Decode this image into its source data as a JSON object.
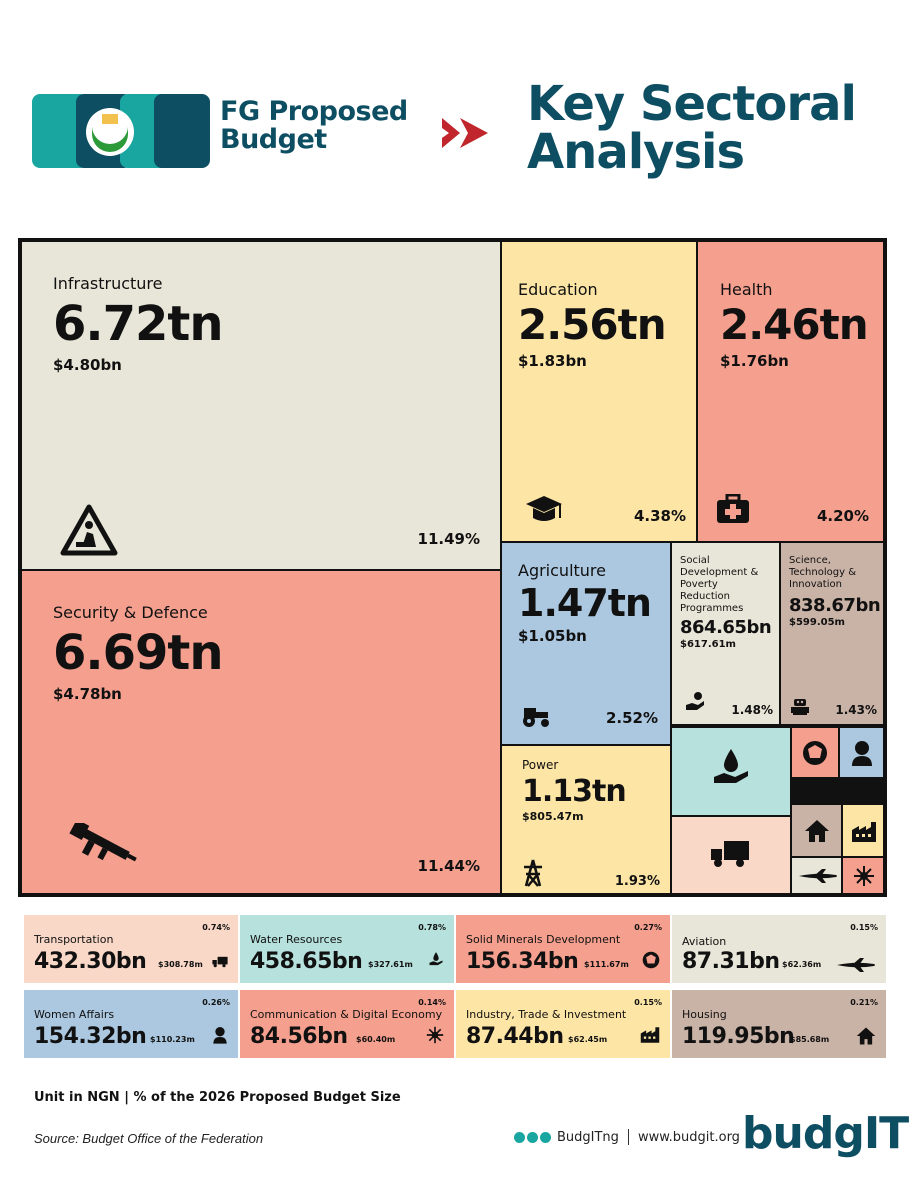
{
  "header": {
    "year": "2026",
    "subtitle_line1": "FG Proposed",
    "subtitle_line2": "Budget",
    "title_line1": "Key Sectoral",
    "title_line2": "Analysis"
  },
  "chart_data": {
    "type": "treemap",
    "unit": "NGN",
    "sectors": [
      {
        "id": "infrastructure",
        "name": "Infrastructure",
        "value": "6.72tn",
        "usd": "$4.80bn",
        "pct": "11.49%",
        "icon": "construction-worker-icon",
        "color": "#e8e6d8"
      },
      {
        "id": "security",
        "name": "Security & Defence",
        "value": "6.69tn",
        "usd": "$4.78bn",
        "pct": "11.44%",
        "icon": "rifle-icon",
        "color": "#f59f8e"
      },
      {
        "id": "education",
        "name": "Education",
        "value": "2.56tn",
        "usd": "$1.83bn",
        "pct": "4.38%",
        "icon": "graduation-cap-icon",
        "color": "#fce5a5"
      },
      {
        "id": "health",
        "name": "Health",
        "value": "2.46tn",
        "usd": "$1.76bn",
        "pct": "4.20%",
        "icon": "first-aid-kit-icon",
        "color": "#f59f8e"
      },
      {
        "id": "agriculture",
        "name": "Agriculture",
        "value": "1.47tn",
        "usd": "$1.05bn",
        "pct": "2.52%",
        "icon": "tractor-icon",
        "color": "#abc8e0"
      },
      {
        "id": "social",
        "name": "Social Development & Poverty Reduction Programmes",
        "value": "864.65bn",
        "usd": "$617.61m",
        "pct": "1.48%",
        "icon": "charity-hand-icon",
        "color": "#e8e6d8"
      },
      {
        "id": "science",
        "name": "Science, Technology & Innovation",
        "value": "838.67bn",
        "usd": "$599.05m",
        "pct": "1.43%",
        "icon": "robot-icon",
        "color": "#c9b2a6"
      },
      {
        "id": "power",
        "name": "Power",
        "value": "1.13tn",
        "usd": "$805.47m",
        "pct": "1.93%",
        "icon": "power-tower-icon",
        "color": "#fce5a5"
      }
    ],
    "cards": [
      {
        "id": "transportation",
        "name": "Transportation",
        "value": "432.30bn",
        "usd": "$308.78m",
        "pct": "0.74%",
        "icon": "truck-icon",
        "color": "#fad8c8"
      },
      {
        "id": "water",
        "name": "Water Resources",
        "value": "458.65bn",
        "usd": "$327.61m",
        "pct": "0.78%",
        "icon": "water-drop-hand-icon",
        "color": "#b6e1dc"
      },
      {
        "id": "solid",
        "name": "Solid Minerals Development",
        "value": "156.34bn",
        "usd": "$111.67m",
        "pct": "0.27%",
        "icon": "mineral-icon",
        "color": "#f59f8e"
      },
      {
        "id": "aviation",
        "name": "Aviation",
        "value": "87.31bn",
        "usd": "$62.36m",
        "pct": "0.15%",
        "icon": "airplane-icon",
        "color": "#e8e6d8"
      },
      {
        "id": "women",
        "name": "Women Affairs",
        "value": "154.32bn",
        "usd": "$110.23m",
        "pct": "0.26%",
        "icon": "woman-icon",
        "color": "#abc8e0"
      },
      {
        "id": "comm",
        "name": "Communication & Digital Economy",
        "value": "84.56bn",
        "usd": "$60.40m",
        "pct": "0.14%",
        "icon": "network-icon",
        "color": "#f59f8e"
      },
      {
        "id": "industry",
        "name": "Industry, Trade & Investment",
        "value": "87.44bn",
        "usd": "$62.45m",
        "pct": "0.15%",
        "icon": "factory-icon",
        "color": "#fce5a5"
      },
      {
        "id": "housing",
        "name": "Housing",
        "value": "119.95bn",
        "usd": "$85.68m",
        "pct": "0.21%",
        "icon": "house-icon",
        "color": "#c9b2a6"
      }
    ]
  },
  "footer": {
    "note": "Unit in NGN | % of the 2026 Proposed Budget Size",
    "source": "Source: Budget Office of the Federation",
    "handle": "BudgITng",
    "website": "www.budgit.org",
    "brand": "budgIT"
  }
}
